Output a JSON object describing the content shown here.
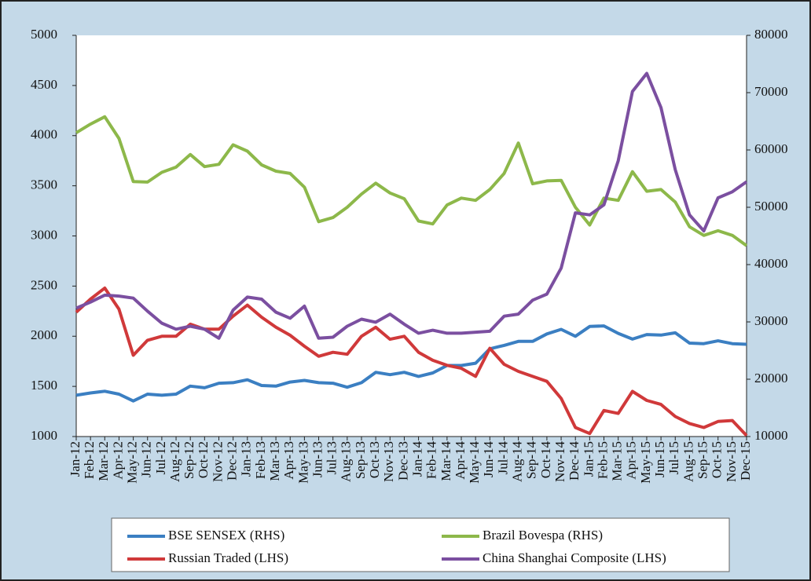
{
  "chart_data": {
    "type": "line",
    "categories": [
      "Jan-12",
      "Feb-12",
      "Mar-12",
      "Apr-12",
      "May-12",
      "Jun-12",
      "Jul-12",
      "Aug-12",
      "Sep-12",
      "Oct-12",
      "Nov-12",
      "Dec-12",
      "Jan-13",
      "Feb-13",
      "Mar-13",
      "Apr-13",
      "May-13",
      "Jun-13",
      "Jul-13",
      "Aug-13",
      "Sep-13",
      "Oct-13",
      "Nov-13",
      "Dec-13",
      "Jan-14",
      "Feb-14",
      "Mar-14",
      "Apr-14",
      "May-14",
      "Jun-14",
      "Jul-14",
      "Aug-14",
      "Sep-14",
      "Oct-14",
      "Nov-14",
      "Dec-14",
      "Jan-15",
      "Feb-15",
      "Mar-15",
      "Apr-15",
      "May-15",
      "Jun-15",
      "Jul-15",
      "Aug-15",
      "Sep-15",
      "Oct-15",
      "Nov-15",
      "Dec-15"
    ],
    "series": [
      {
        "name": "BSE SENSEX (RHS)",
        "color": "#3b7fc2",
        "axis": "y2",
        "values": [
          17200,
          17600,
          17900,
          17400,
          16200,
          17400,
          17200,
          17400,
          18800,
          18500,
          19300,
          19400,
          19900,
          18900,
          18800,
          19500,
          19800,
          19400,
          19300,
          18600,
          19400,
          21200,
          20800,
          21200,
          20500,
          21100,
          22400,
          22400,
          22800,
          25300,
          25900,
          26600,
          26600,
          27900,
          28700,
          27500,
          29200,
          29300,
          28000,
          27000,
          27800,
          27700,
          28100,
          26300,
          26200,
          26700,
          26200,
          26100
        ]
      },
      {
        "name": "Brazil Bovespa (RHS)",
        "color": "#8db84a",
        "axis": "y2",
        "values": [
          63000,
          64500,
          65800,
          62000,
          54500,
          54400,
          56100,
          57000,
          59200,
          57100,
          57500,
          60900,
          59800,
          57400,
          56300,
          55900,
          53500,
          47500,
          48200,
          50000,
          52300,
          54200,
          52500,
          51500,
          47600,
          47100,
          50400,
          51600,
          51200,
          53100,
          55900,
          61200,
          54100,
          54600,
          54700,
          50000,
          46900,
          51600,
          51200,
          56200,
          52800,
          53100,
          50900,
          46600,
          45100,
          45900,
          45100,
          43300
        ]
      },
      {
        "name": "Russian Traded (LHS)",
        "color": "#d0393a",
        "axis": "y",
        "values": [
          2240,
          2370,
          2480,
          2270,
          1810,
          1960,
          2000,
          2000,
          2120,
          2070,
          2070,
          2200,
          2310,
          2190,
          2090,
          2010,
          1900,
          1800,
          1840,
          1820,
          2000,
          2090,
          1970,
          2000,
          1840,
          1760,
          1710,
          1680,
          1600,
          1880,
          1720,
          1650,
          1600,
          1550,
          1380,
          1090,
          1030,
          1260,
          1230,
          1450,
          1360,
          1320,
          1200,
          1130,
          1090,
          1150,
          1160,
          1010
        ]
      },
      {
        "name": "China Shanghai Composite (LHS)",
        "color": "#7b4fa0",
        "axis": "y",
        "values": [
          2280,
          2340,
          2410,
          2400,
          2380,
          2250,
          2130,
          2070,
          2100,
          2070,
          1980,
          2260,
          2390,
          2370,
          2240,
          2180,
          2300,
          1980,
          1990,
          2100,
          2170,
          2140,
          2220,
          2120,
          2030,
          2060,
          2030,
          2030,
          2040,
          2050,
          2200,
          2220,
          2360,
          2420,
          2680,
          3230,
          3210,
          3310,
          3750,
          4440,
          4620,
          4280,
          3660,
          3210,
          3050,
          3380,
          3440,
          3540
        ]
      }
    ],
    "ylim": [
      1000,
      5000
    ],
    "yticks": [
      1000,
      1500,
      2000,
      2500,
      3000,
      3500,
      4000,
      4500,
      5000
    ],
    "y2lim": [
      10000,
      80000
    ],
    "y2ticks": [
      10000,
      20000,
      30000,
      40000,
      50000,
      60000,
      70000,
      80000
    ],
    "legend": "bottom",
    "grid": false
  }
}
